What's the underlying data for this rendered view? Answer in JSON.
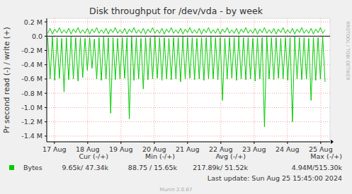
{
  "chart_data": {
    "type": "line",
    "title": "Disk throughput for /dev/vda - by week",
    "y_label": "Pr second read (-) / write (+)",
    "credit": "RRDTOOL / TOBI OETIKER",
    "last_update": "Last update: Sun Aug 25 15:45:00 2024",
    "version": "Munin 2.0.67",
    "grid": true,
    "xlim": [
      16.77,
      25.28
    ],
    "xticks": [
      {
        "value": 17,
        "label": "17 Aug"
      },
      {
        "value": 18,
        "label": "18 Aug"
      },
      {
        "value": 19,
        "label": "19 Aug"
      },
      {
        "value": 20,
        "label": "20 Aug"
      },
      {
        "value": 21,
        "label": "21 Aug"
      },
      {
        "value": 22,
        "label": "22 Aug"
      },
      {
        "value": 23,
        "label": "23 Aug"
      },
      {
        "value": 24,
        "label": "24 Aug"
      },
      {
        "value": 25,
        "label": "25 Aug"
      }
    ],
    "ylim": [
      -1480000,
      250000
    ],
    "yticks": [
      {
        "value": 200000,
        "label": "0.2 M"
      },
      {
        "value": 0,
        "label": "0.0"
      },
      {
        "value": -200000,
        "label": "-0.2 M"
      },
      {
        "value": -400000,
        "label": "-0.4 M"
      },
      {
        "value": -600000,
        "label": "-0.6 M"
      },
      {
        "value": -800000,
        "label": "-0.8 M"
      },
      {
        "value": -1000000,
        "label": "-1.0 M"
      },
      {
        "value": -1200000,
        "label": "-1.2 M"
      },
      {
        "value": -1400000,
        "label": "-1.4 M"
      }
    ],
    "x": [
      16.8,
      16.87,
      16.94,
      17.01,
      17.08,
      17.15,
      17.22,
      17.29,
      17.36,
      17.43,
      17.5,
      17.57,
      17.64,
      17.71,
      17.78,
      17.85,
      17.92,
      17.99,
      18.06,
      18.13,
      18.2,
      18.27,
      18.34,
      18.41,
      18.48,
      18.55,
      18.62,
      18.69,
      18.76,
      18.83,
      18.9,
      18.97,
      19.04,
      19.11,
      19.18,
      19.25,
      19.32,
      19.39,
      19.46,
      19.53,
      19.6,
      19.67,
      19.74,
      19.81,
      19.88,
      19.95,
      20.02,
      20.09,
      20.16,
      20.23,
      20.3,
      20.37,
      20.44,
      20.51,
      20.58,
      20.65,
      20.72,
      20.79,
      20.86,
      20.93,
      21,
      21.07,
      21.14,
      21.21,
      21.28,
      21.35,
      21.42,
      21.49,
      21.56,
      21.63,
      21.7,
      21.77,
      21.84,
      21.91,
      21.98,
      22.05,
      22.12,
      22.19,
      22.26,
      22.33,
      22.4,
      22.47,
      22.54,
      22.61,
      22.68,
      22.75,
      22.82,
      22.89,
      22.96,
      23.03,
      23.1,
      23.17,
      23.24,
      23.31,
      23.38,
      23.45,
      23.52,
      23.59,
      23.66,
      23.73,
      23.8,
      23.87,
      23.94,
      24.01,
      24.08,
      24.15,
      24.22,
      24.29,
      24.36,
      24.43,
      24.5,
      24.57,
      24.64,
      24.71,
      24.78,
      24.85,
      24.92,
      24.99,
      25.06,
      25.13
    ],
    "series": [
      {
        "name": "Bytes",
        "color": "#00cc00",
        "values": [
          40000,
          110000,
          30000,
          100000,
          50000,
          120000,
          40000,
          90000,
          40000,
          110000,
          30000,
          100000,
          50000,
          120000,
          40000,
          90000,
          40000,
          110000,
          30000,
          100000,
          50000,
          120000,
          40000,
          90000,
          40000,
          110000,
          30000,
          100000,
          50000,
          120000,
          40000,
          90000,
          40000,
          110000,
          30000,
          100000,
          50000,
          120000,
          40000,
          90000,
          40000,
          110000,
          30000,
          100000,
          50000,
          120000,
          40000,
          90000,
          40000,
          110000,
          30000,
          100000,
          50000,
          120000,
          40000,
          90000,
          40000,
          110000,
          30000,
          100000,
          50000,
          120000,
          40000,
          90000,
          40000,
          110000,
          30000,
          100000,
          50000,
          120000,
          40000,
          90000,
          40000,
          110000,
          30000,
          100000,
          50000,
          120000,
          40000,
          90000,
          40000,
          110000,
          30000,
          100000,
          50000,
          120000,
          40000,
          90000,
          40000,
          110000,
          30000,
          100000,
          50000,
          120000,
          40000,
          90000,
          40000,
          110000,
          30000,
          100000,
          50000,
          120000,
          40000,
          90000,
          40000,
          110000,
          30000,
          100000,
          50000,
          120000,
          40000,
          90000,
          40000,
          110000,
          30000,
          100000,
          50000,
          120000,
          40000,
          90000
        ]
      },
      {
        "color": "#00cc00",
        "values": [
          -20000,
          -600000,
          -10000,
          -620000,
          -20000,
          -590000,
          -30000,
          -780000,
          -20000,
          -610000,
          -10000,
          -600000,
          -20000,
          -630000,
          -20000,
          -580000,
          -30000,
          -480000,
          -20000,
          -450000,
          -40000,
          -600000,
          -20000,
          -620000,
          -10000,
          -600000,
          -20000,
          -1080000,
          -20000,
          -610000,
          -30000,
          -600000,
          -20000,
          -590000,
          -20000,
          -1160000,
          -10000,
          -620000,
          -20000,
          -600000,
          -30000,
          -740000,
          -20000,
          -610000,
          -20000,
          -600000,
          -10000,
          -590000,
          -20000,
          -620000,
          -20000,
          -600000,
          -30000,
          -610000,
          -20000,
          -600000,
          -20000,
          -640000,
          -10000,
          -600000,
          -20000,
          -590000,
          -20000,
          -610000,
          -30000,
          -600000,
          -20000,
          -620000,
          -20000,
          -600000,
          -10000,
          -600000,
          -20000,
          -610000,
          -20000,
          -900000,
          -30000,
          -600000,
          -20000,
          -590000,
          -20000,
          -620000,
          -10000,
          -600000,
          -20000,
          -610000,
          -20000,
          -600000,
          -30000,
          -630000,
          -20000,
          -600000,
          -20000,
          -1270000,
          -10000,
          -600000,
          -20000,
          -610000,
          -20000,
          -590000,
          -30000,
          -600000,
          -20000,
          -620000,
          -20000,
          -1200000,
          -10000,
          -600000,
          -20000,
          -610000,
          -20000,
          -600000,
          -30000,
          -900000,
          -20000,
          -620000,
          -20000,
          -600000,
          -10000,
          -640000
        ]
      }
    ],
    "stats": {
      "headers": [
        "Cur (-/+)",
        "Min (-/+)",
        "Avg (-/+)",
        "Max (-/+)"
      ],
      "values": [
        "9.65k/ 47.34k",
        "88.75 / 15.65k",
        "217.89k/ 51.52k",
        "4.94M/515.30k"
      ]
    }
  }
}
